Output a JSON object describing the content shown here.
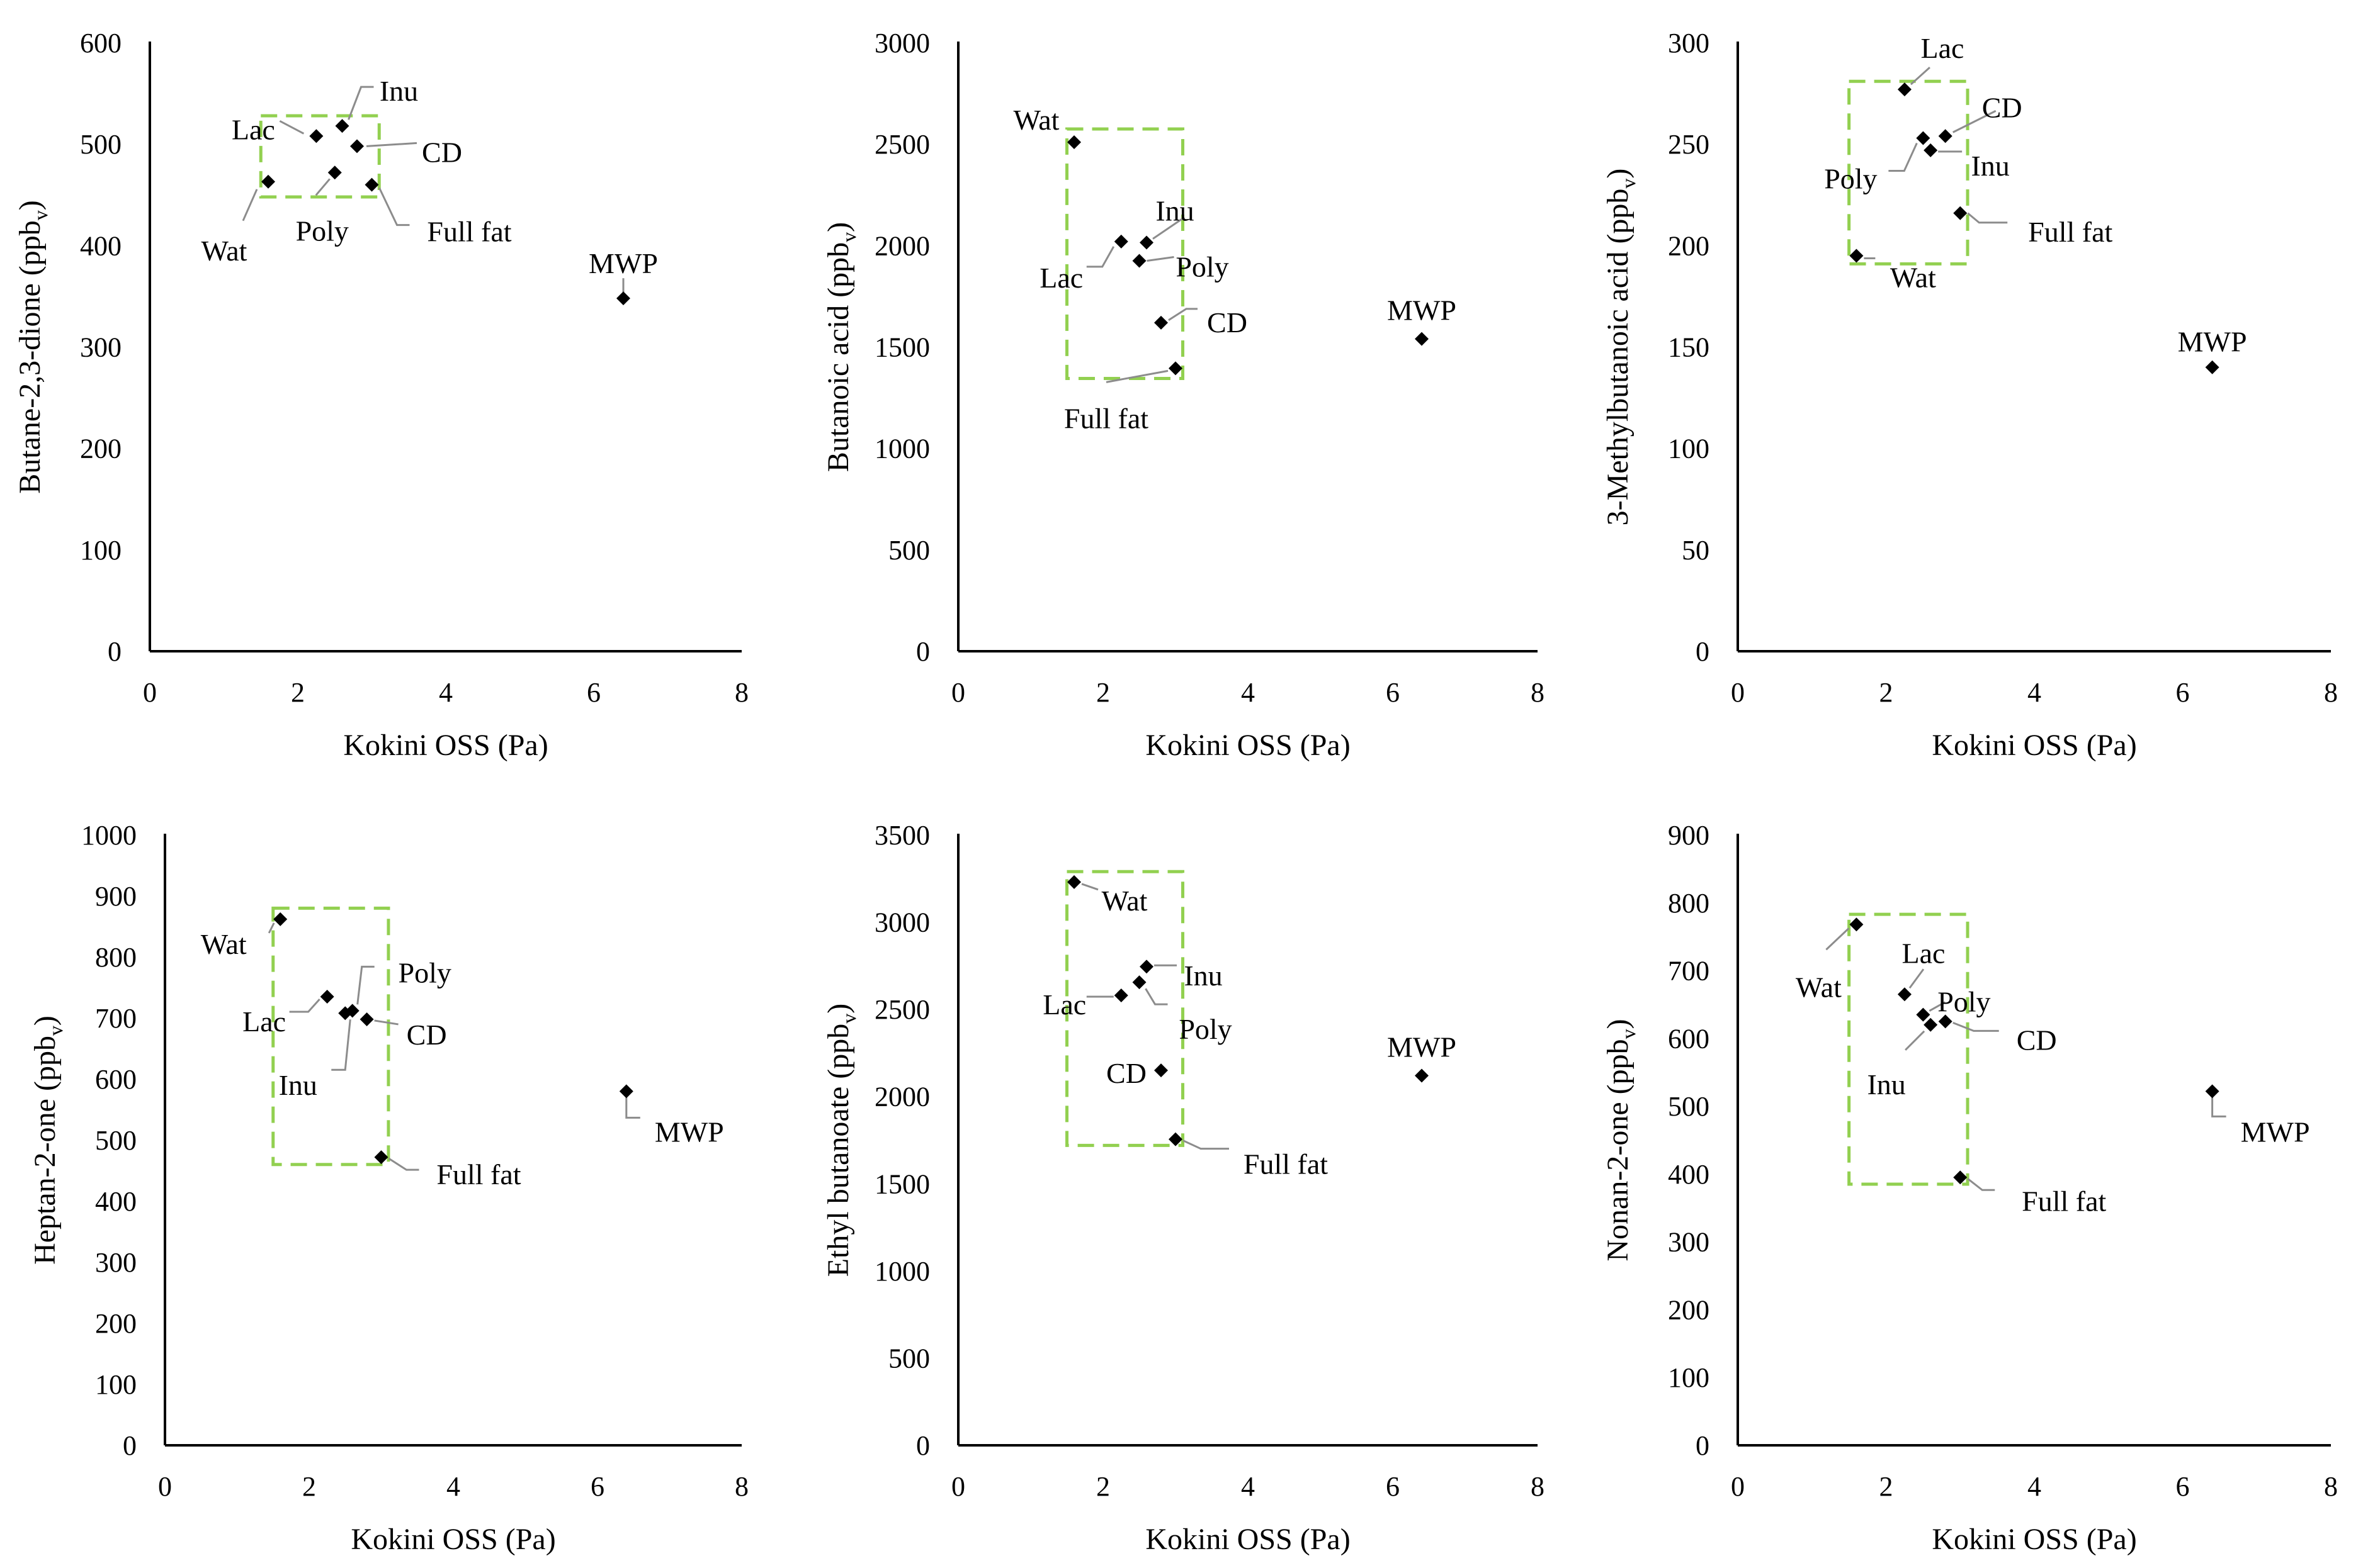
{
  "figure": {
    "x_axis_title": "Kokini OSS (Pa)",
    "colors": {
      "marker": "#000000",
      "highlight_box": "#92d050",
      "leader_line": "#8c8c8c",
      "axis": "#000000"
    }
  },
  "chart_data": [
    {
      "type": "scatter",
      "title": "",
      "xlabel": "Kokini OSS (Pa)",
      "ylabel": "Butane-2,3-dione (ppbv)",
      "ylabel_base": "Butane-2,3-dione (ppb",
      "ylabel_sub": "v",
      "ylabel_suffix": ")",
      "xlim": [
        0,
        8
      ],
      "ylim": [
        0,
        600
      ],
      "xticks": [
        0,
        2,
        4,
        6,
        8
      ],
      "yticks": [
        0,
        100,
        200,
        300,
        400,
        500,
        600
      ],
      "points": [
        {
          "label": "Wat",
          "x": 1.6,
          "y": 463
        },
        {
          "label": "Lac",
          "x": 2.25,
          "y": 508
        },
        {
          "label": "Inu",
          "x": 2.6,
          "y": 518
        },
        {
          "label": "Poly",
          "x": 2.5,
          "y": 472
        },
        {
          "label": "CD",
          "x": 2.8,
          "y": 498
        },
        {
          "label": "Full fat",
          "x": 3.0,
          "y": 460
        },
        {
          "label": "MWP",
          "x": 6.4,
          "y": 348
        }
      ],
      "highlight_box": {
        "x": [
          1.5,
          3.1
        ],
        "y": [
          448,
          528
        ]
      }
    },
    {
      "type": "scatter",
      "title": "",
      "xlabel": "Kokini OSS (Pa)",
      "ylabel": "Butanoic acid (ppbv)",
      "ylabel_base": "Butanoic acid (ppb",
      "ylabel_sub": "v",
      "ylabel_suffix": ")",
      "xlim": [
        0,
        8
      ],
      "ylim": [
        0,
        3000
      ],
      "xticks": [
        0,
        2,
        4,
        6,
        8
      ],
      "yticks": [
        0,
        500,
        1000,
        1500,
        2000,
        2500,
        3000
      ],
      "points": [
        {
          "label": "Wat",
          "x": 1.6,
          "y": 2510
        },
        {
          "label": "Lac",
          "x": 2.25,
          "y": 2020
        },
        {
          "label": "Inu",
          "x": 2.6,
          "y": 2015
        },
        {
          "label": "Poly",
          "x": 2.5,
          "y": 1925
        },
        {
          "label": "CD",
          "x": 2.8,
          "y": 1620
        },
        {
          "label": "Full fat",
          "x": 3.0,
          "y": 1395
        },
        {
          "label": "MWP",
          "x": 6.4,
          "y": 1540
        }
      ],
      "highlight_box": {
        "x": [
          1.5,
          3.1
        ],
        "y": [
          1345,
          2575
        ]
      }
    },
    {
      "type": "scatter",
      "title": "",
      "xlabel": "Kokini OSS (Pa)",
      "ylabel": "3-Methylbutanoic acid (ppbv)",
      "ylabel_base": "3-Methylbutanoic acid (ppb",
      "ylabel_sub": "v",
      "ylabel_suffix": ")",
      "xlim": [
        0,
        8
      ],
      "ylim": [
        0,
        300
      ],
      "xticks": [
        0,
        2,
        4,
        6,
        8
      ],
      "yticks": [
        0,
        50,
        100,
        150,
        200,
        250,
        300
      ],
      "points": [
        {
          "label": "Lac",
          "x": 2.25,
          "y": 277
        },
        {
          "label": "CD",
          "x": 2.8,
          "y": 254
        },
        {
          "label": "Poly",
          "x": 2.5,
          "y": 253
        },
        {
          "label": "Inu",
          "x": 2.6,
          "y": 247
        },
        {
          "label": "Full fat",
          "x": 3.0,
          "y": 216
        },
        {
          "label": "Wat",
          "x": 1.6,
          "y": 195
        },
        {
          "label": "MWP",
          "x": 6.4,
          "y": 140
        }
      ],
      "highlight_box": {
        "x": [
          1.5,
          3.1
        ],
        "y": [
          191,
          281
        ]
      }
    },
    {
      "type": "scatter",
      "title": "",
      "xlabel": "Kokini OSS (Pa)",
      "ylabel": "Heptan-2-one (ppbv)",
      "ylabel_base": "Heptan-2-one (ppb",
      "ylabel_sub": "v",
      "ylabel_suffix": ")",
      "xlim": [
        0,
        8
      ],
      "ylim": [
        0,
        1000
      ],
      "xticks": [
        0,
        2,
        4,
        6,
        8
      ],
      "yticks": [
        0,
        100,
        200,
        300,
        400,
        500,
        600,
        700,
        800,
        900,
        1000
      ],
      "points": [
        {
          "label": "Wat",
          "x": 1.6,
          "y": 862
        },
        {
          "label": "Lac",
          "x": 2.25,
          "y": 735
        },
        {
          "label": "Poly",
          "x": 2.6,
          "y": 712
        },
        {
          "label": "Inu",
          "x": 2.5,
          "y": 708
        },
        {
          "label": "CD",
          "x": 2.8,
          "y": 698
        },
        {
          "label": "Full fat",
          "x": 3.0,
          "y": 472
        },
        {
          "label": "MWP",
          "x": 6.4,
          "y": 580
        }
      ],
      "highlight_box": {
        "x": [
          1.5,
          3.1
        ],
        "y": [
          460,
          880
        ]
      }
    },
    {
      "type": "scatter",
      "title": "",
      "xlabel": "Kokini OSS (Pa)",
      "ylabel": "Ethyl butanoate (ppbv)",
      "ylabel_base": "Ethyl butanoate (ppb",
      "ylabel_sub": "v",
      "ylabel_suffix": ")",
      "xlim": [
        0,
        8
      ],
      "ylim": [
        0,
        3500
      ],
      "xticks": [
        0,
        2,
        4,
        6,
        8
      ],
      "yticks": [
        0,
        500,
        1000,
        1500,
        2000,
        2500,
        3000,
        3500
      ],
      "points": [
        {
          "label": "Wat",
          "x": 1.6,
          "y": 3230
        },
        {
          "label": "Inu",
          "x": 2.6,
          "y": 2745
        },
        {
          "label": "Poly",
          "x": 2.5,
          "y": 2655
        },
        {
          "label": "Lac",
          "x": 2.25,
          "y": 2580
        },
        {
          "label": "CD",
          "x": 2.8,
          "y": 2150
        },
        {
          "label": "Full fat",
          "x": 3.0,
          "y": 1755
        },
        {
          "label": "MWP",
          "x": 6.4,
          "y": 2120
        }
      ],
      "highlight_box": {
        "x": [
          1.5,
          3.1
        ],
        "y": [
          1720,
          3290
        ]
      }
    },
    {
      "type": "scatter",
      "title": "",
      "xlabel": "Kokini OSS (Pa)",
      "ylabel": "Nonan-2-one (ppbv)",
      "ylabel_base": "Nonan-2-one (ppb",
      "ylabel_sub": "v",
      "ylabel_suffix": ")",
      "xlim": [
        0,
        8
      ],
      "ylim": [
        0,
        900
      ],
      "xticks": [
        0,
        2,
        4,
        6,
        8
      ],
      "yticks": [
        0,
        100,
        200,
        300,
        400,
        500,
        600,
        700,
        800,
        900
      ],
      "points": [
        {
          "label": "Wat",
          "x": 1.6,
          "y": 768
        },
        {
          "label": "Lac",
          "x": 2.25,
          "y": 665
        },
        {
          "label": "Poly",
          "x": 2.5,
          "y": 635
        },
        {
          "label": "CD",
          "x": 2.8,
          "y": 625
        },
        {
          "label": "Inu",
          "x": 2.6,
          "y": 620
        },
        {
          "label": "Full fat",
          "x": 3.0,
          "y": 395
        },
        {
          "label": "MWP",
          "x": 6.4,
          "y": 522
        }
      ],
      "highlight_box": {
        "x": [
          1.5,
          3.1
        ],
        "y": [
          385,
          783
        ]
      }
    }
  ]
}
